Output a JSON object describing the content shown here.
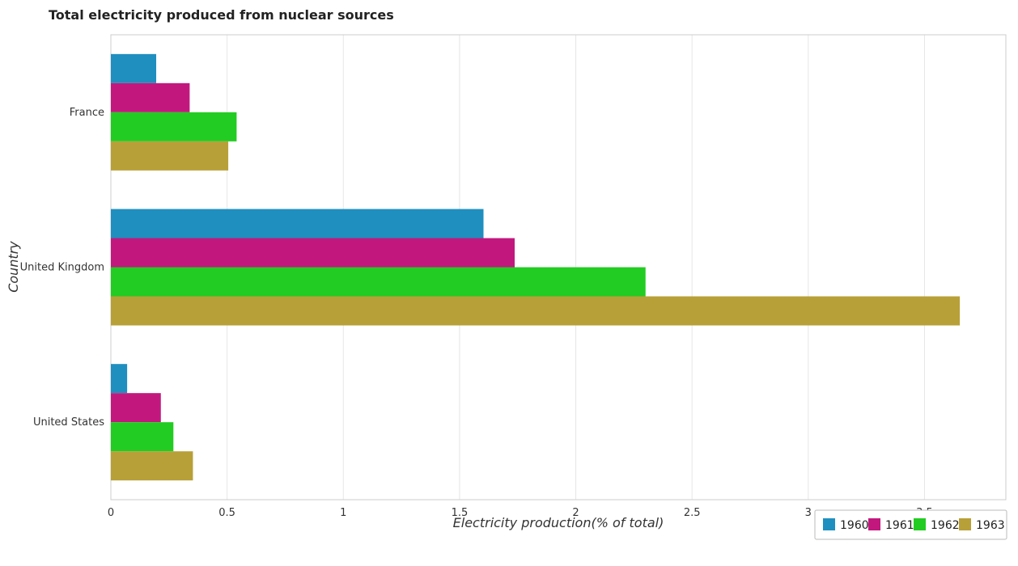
{
  "chart_data": {
    "type": "bar",
    "orientation": "horizontal",
    "title": "Total electricity produced from nuclear sources",
    "xlabel": "Electricity production(% of total)",
    "ylabel": "Country",
    "categories": [
      "France",
      "United Kingdom",
      "United States"
    ],
    "series": [
      {
        "name": "1960",
        "color": "#1f8fbf",
        "values": [
          0.195,
          1.603,
          0.07
        ]
      },
      {
        "name": "1961",
        "color": "#c2187e",
        "values": [
          0.339,
          1.737,
          0.215
        ]
      },
      {
        "name": "1962",
        "color": "#22cc22",
        "values": [
          0.541,
          2.3,
          0.269
        ]
      },
      {
        "name": "1963",
        "color": "#b8a038",
        "values": [
          0.505,
          3.652,
          0.353
        ]
      }
    ],
    "xlim": [
      0,
      3.85
    ],
    "xticks": [
      0,
      0.5,
      1,
      1.5,
      2,
      2.5,
      3,
      3.5
    ],
    "xtick_labels": [
      "0",
      "0.5",
      "1",
      "1.5",
      "2",
      "2.5",
      "3",
      "3.5"
    ],
    "grid": true,
    "legend_position": "bottom-right"
  }
}
